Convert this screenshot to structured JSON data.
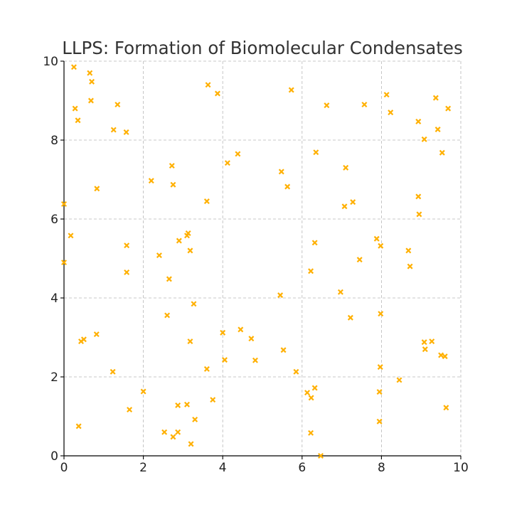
{
  "chart_data": {
    "type": "scatter",
    "title": "LLPS: Formation of Biomolecular Condensates",
    "xlabel": "",
    "ylabel": "",
    "xlim": [
      0,
      10
    ],
    "ylim": [
      0,
      10
    ],
    "xticks": [
      "0",
      "2",
      "4",
      "6",
      "8",
      "10"
    ],
    "yticks": [
      "0",
      "2",
      "4",
      "6",
      "8",
      "10"
    ],
    "grid": true,
    "marker": "x",
    "color": "#ffb000",
    "series": [
      {
        "points": [
          [
            0.25,
            9.85
          ],
          [
            0.65,
            9.7
          ],
          [
            0.7,
            9.48
          ],
          [
            0.28,
            8.8
          ],
          [
            0.35,
            8.5
          ],
          [
            0.68,
            9.0
          ],
          [
            1.35,
            8.9
          ],
          [
            1.25,
            8.26
          ],
          [
            1.57,
            8.2
          ],
          [
            0.83,
            6.77
          ],
          [
            0.0,
            6.38
          ],
          [
            0.17,
            5.58
          ],
          [
            0.0,
            4.9
          ],
          [
            1.58,
            5.33
          ],
          [
            1.58,
            4.65
          ],
          [
            0.43,
            2.9
          ],
          [
            0.5,
            2.95
          ],
          [
            0.82,
            3.08
          ],
          [
            1.23,
            2.13
          ],
          [
            0.37,
            0.75
          ],
          [
            2.0,
            1.63
          ],
          [
            1.65,
            1.17
          ],
          [
            2.2,
            6.97
          ],
          [
            2.72,
            7.35
          ],
          [
            2.75,
            6.87
          ],
          [
            2.4,
            5.08
          ],
          [
            2.9,
            5.45
          ],
          [
            3.1,
            5.58
          ],
          [
            3.13,
            5.64
          ],
          [
            3.18,
            5.2
          ],
          [
            2.65,
            4.48
          ],
          [
            2.6,
            3.56
          ],
          [
            3.27,
            3.85
          ],
          [
            3.18,
            2.9
          ],
          [
            2.53,
            0.6
          ],
          [
            2.75,
            0.48
          ],
          [
            2.87,
            0.6
          ],
          [
            2.87,
            1.28
          ],
          [
            3.1,
            1.3
          ],
          [
            3.3,
            0.92
          ],
          [
            3.2,
            0.3
          ],
          [
            3.63,
            9.4
          ],
          [
            3.87,
            9.18
          ],
          [
            4.12,
            7.42
          ],
          [
            4.38,
            7.65
          ],
          [
            3.6,
            6.45
          ],
          [
            3.6,
            2.2
          ],
          [
            3.75,
            1.42
          ],
          [
            4.0,
            3.12
          ],
          [
            4.45,
            3.2
          ],
          [
            4.05,
            2.43
          ],
          [
            4.72,
            2.97
          ],
          [
            4.82,
            2.42
          ],
          [
            5.73,
            9.27
          ],
          [
            5.48,
            7.2
          ],
          [
            5.63,
            6.82
          ],
          [
            5.45,
            4.07
          ],
          [
            5.53,
            2.68
          ],
          [
            5.85,
            2.13
          ],
          [
            6.62,
            8.88
          ],
          [
            6.35,
            7.69
          ],
          [
            7.1,
            7.3
          ],
          [
            7.07,
            6.32
          ],
          [
            7.28,
            6.43
          ],
          [
            6.32,
            5.4
          ],
          [
            6.22,
            4.68
          ],
          [
            7.45,
            4.97
          ],
          [
            6.97,
            4.15
          ],
          [
            7.22,
            3.5
          ],
          [
            6.13,
            1.6
          ],
          [
            6.32,
            1.72
          ],
          [
            6.23,
            1.47
          ],
          [
            6.22,
            0.58
          ],
          [
            6.47,
            0.0
          ],
          [
            7.57,
            8.9
          ],
          [
            8.13,
            9.15
          ],
          [
            8.23,
            8.7
          ],
          [
            9.37,
            9.07
          ],
          [
            8.93,
            8.47
          ],
          [
            9.42,
            8.27
          ],
          [
            9.68,
            8.8
          ],
          [
            9.08,
            8.02
          ],
          [
            9.53,
            7.68
          ],
          [
            8.93,
            6.57
          ],
          [
            8.95,
            6.12
          ],
          [
            7.88,
            5.5
          ],
          [
            7.98,
            5.32
          ],
          [
            8.68,
            5.2
          ],
          [
            8.72,
            4.8
          ],
          [
            7.98,
            3.6
          ],
          [
            7.97,
            2.25
          ],
          [
            7.95,
            1.62
          ],
          [
            8.45,
            1.92
          ],
          [
            7.95,
            0.87
          ],
          [
            9.08,
            2.88
          ],
          [
            9.27,
            2.9
          ],
          [
            9.1,
            2.7
          ],
          [
            9.5,
            2.55
          ],
          [
            9.6,
            2.52
          ],
          [
            9.63,
            1.22
          ]
        ]
      }
    ]
  }
}
